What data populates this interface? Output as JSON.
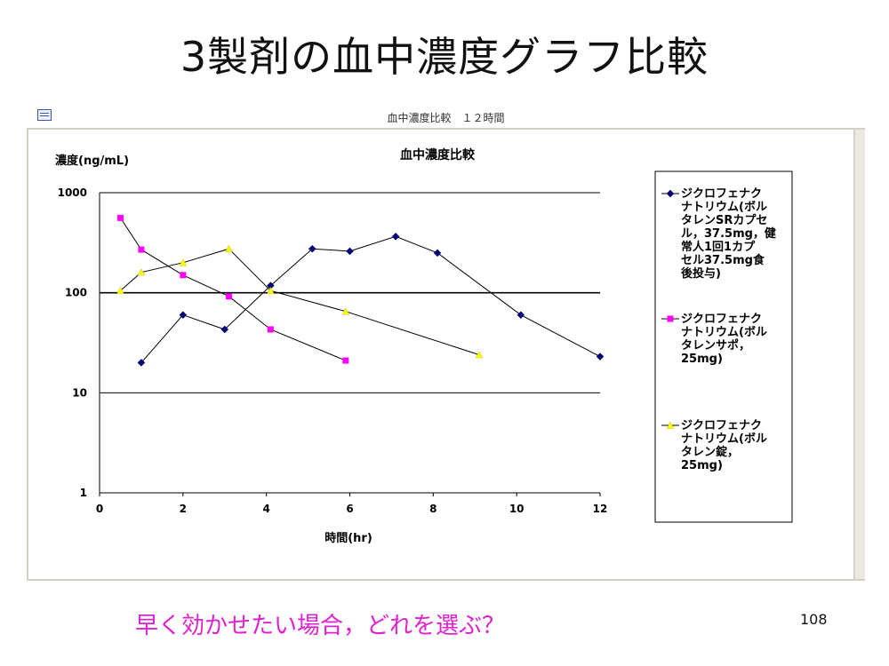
{
  "slide": {
    "title": "3製剤の血中濃度グラフ比較",
    "bottom_question": "早く効かせたい場合，どれを選ぶ？",
    "page_number": "108"
  },
  "window": {
    "title": "血中濃度比較　１２時間"
  },
  "colors": {
    "series1": "#000080",
    "series2": "#ff00ff",
    "series3": "#ffff00",
    "question": "#e020d0"
  },
  "chart_data": {
    "type": "line",
    "title": "血中濃度比較",
    "ylabel": "濃度(ng/mL)",
    "xlabel": "時間(hr)",
    "y_scale": "log",
    "xlim": [
      0,
      12
    ],
    "ylim": [
      1,
      1000
    ],
    "x_ticks": [
      "0",
      "2",
      "4",
      "6",
      "8",
      "10",
      "12"
    ],
    "y_ticks": [
      "1000",
      "100",
      "10",
      "1"
    ],
    "grid": "horizontal",
    "legend_position": "right",
    "series": [
      {
        "name": "ジクロフェナクナトリウム(ボルタレンSRカプセル，37.5mg，健常人1回1カプセル37.5mg食後投与)",
        "legend_lines": [
          "ジクロフェナク",
          "ナトリウム(ボル",
          "タレンSRカプセ",
          "ル，37.5mg，健",
          "常人1回1カプ",
          "セル37.5mg食",
          "後投与)"
        ],
        "marker": "diamond",
        "points": [
          [
            1,
            20
          ],
          [
            2,
            60
          ],
          [
            3,
            43
          ],
          [
            4.1,
            118
          ],
          [
            5.1,
            275
          ],
          [
            6,
            260
          ],
          [
            7.1,
            365
          ],
          [
            8.1,
            250
          ],
          [
            10.1,
            60
          ],
          [
            12,
            23
          ]
        ]
      },
      {
        "name": "ジクロフェナクナトリウム(ボルタレンサポ，25mg)",
        "legend_lines": [
          "ジクロフェナク",
          "ナトリウム(ボル",
          "タレンサポ，",
          "25mg)"
        ],
        "marker": "square",
        "points": [
          [
            0.5,
            560
          ],
          [
            1,
            270
          ],
          [
            2,
            150
          ],
          [
            3.1,
            92
          ],
          [
            4.1,
            43
          ],
          [
            5.9,
            21
          ]
        ]
      },
      {
        "name": "ジクロフェナクナトリウム(ボルタレン錠，25mg)",
        "legend_lines": [
          "ジクロフェナク",
          "ナトリウム(ボル",
          "タレン錠，",
          "25mg)"
        ],
        "marker": "triangle",
        "points": [
          [
            0.5,
            105
          ],
          [
            1,
            160
          ],
          [
            2,
            200
          ],
          [
            3.1,
            275
          ],
          [
            4.1,
            105
          ],
          [
            5.9,
            65
          ],
          [
            9.1,
            24
          ]
        ]
      }
    ]
  }
}
